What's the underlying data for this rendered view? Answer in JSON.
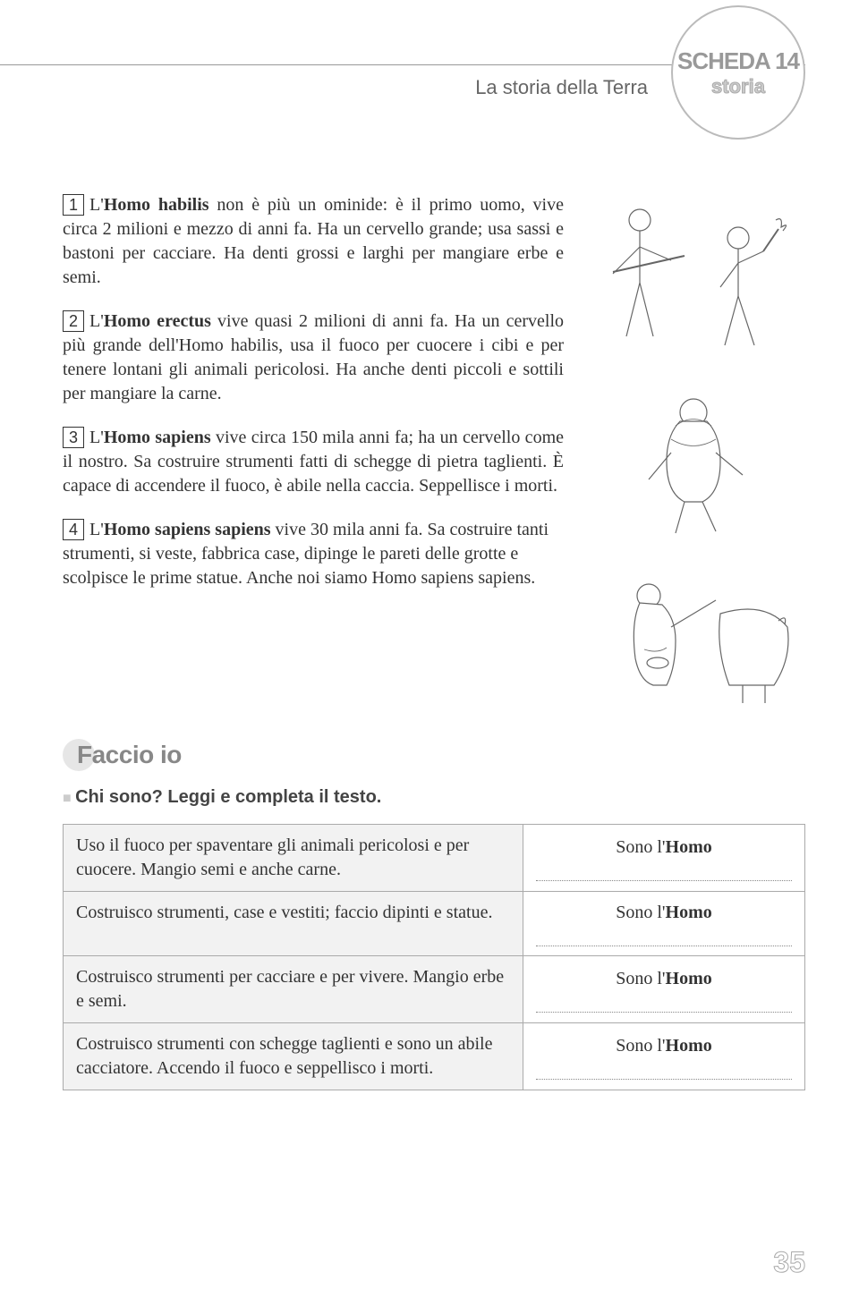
{
  "header": {
    "chapter": "La storia della Terra",
    "badge_main": "SCHEDA 14",
    "badge_sub": "storia"
  },
  "paragraphs": [
    {
      "num": "1",
      "html": "L'<b>Homo habilis</b> non è più un ominide: è il primo uomo, vive circa 2 milioni e mezzo di anni fa. Ha un cervello grande; usa sassi e bastoni per cacciare. Ha denti grossi e larghi per mangiare erbe e semi."
    },
    {
      "num": "2",
      "html": "L'<b>Homo erectus</b> vive quasi 2 milioni di anni fa. Ha un cervello più grande dell'Homo habilis, usa il fuoco per cuocere i cibi e per tenere lontani gli animali pericolosi. Ha anche denti piccoli e sottili per mangiare la carne."
    },
    {
      "num": "3",
      "html": "L'<b>Homo sapiens</b> vive circa 150 mila anni fa; ha un cervello come il nostro. Sa costruire strumenti fatti di schegge di pietra taglienti. È capace di accendere il fuoco, è abile nella caccia. Seppellisce i morti."
    },
    {
      "num": "4",
      "html": "L'<b>Homo sapiens sapiens</b> vive 30 mila anni fa. Sa costruire tanti strumenti, si veste, fabbrica case, dipinge le pareti delle grotte e scolpisce le prime statue. Anche noi siamo Homo sapiens sapiens."
    }
  ],
  "faccio": {
    "title": "Faccio io",
    "instruction": "Chi sono? Leggi e completa il testo."
  },
  "exercise": {
    "answer_prefix": "Sono l'",
    "answer_bold": "Homo",
    "rows": [
      {
        "clue": "Uso il fuoco per spaventare gli animali pericolosi e per cuocere. Mangio semi e anche carne."
      },
      {
        "clue": "Costruisco strumenti, case e vestiti; faccio dipinti e statue."
      },
      {
        "clue": "Costruisco strumenti per cacciare e per vivere. Mangio erbe e semi."
      },
      {
        "clue": "Costruisco strumenti con schegge taglienti e sono un abile cacciatore. Accendo il fuoco e seppellisco i morti."
      }
    ]
  },
  "page_number": "35",
  "illustration_stroke": "#666666",
  "illustration_fill": "#ffffff"
}
